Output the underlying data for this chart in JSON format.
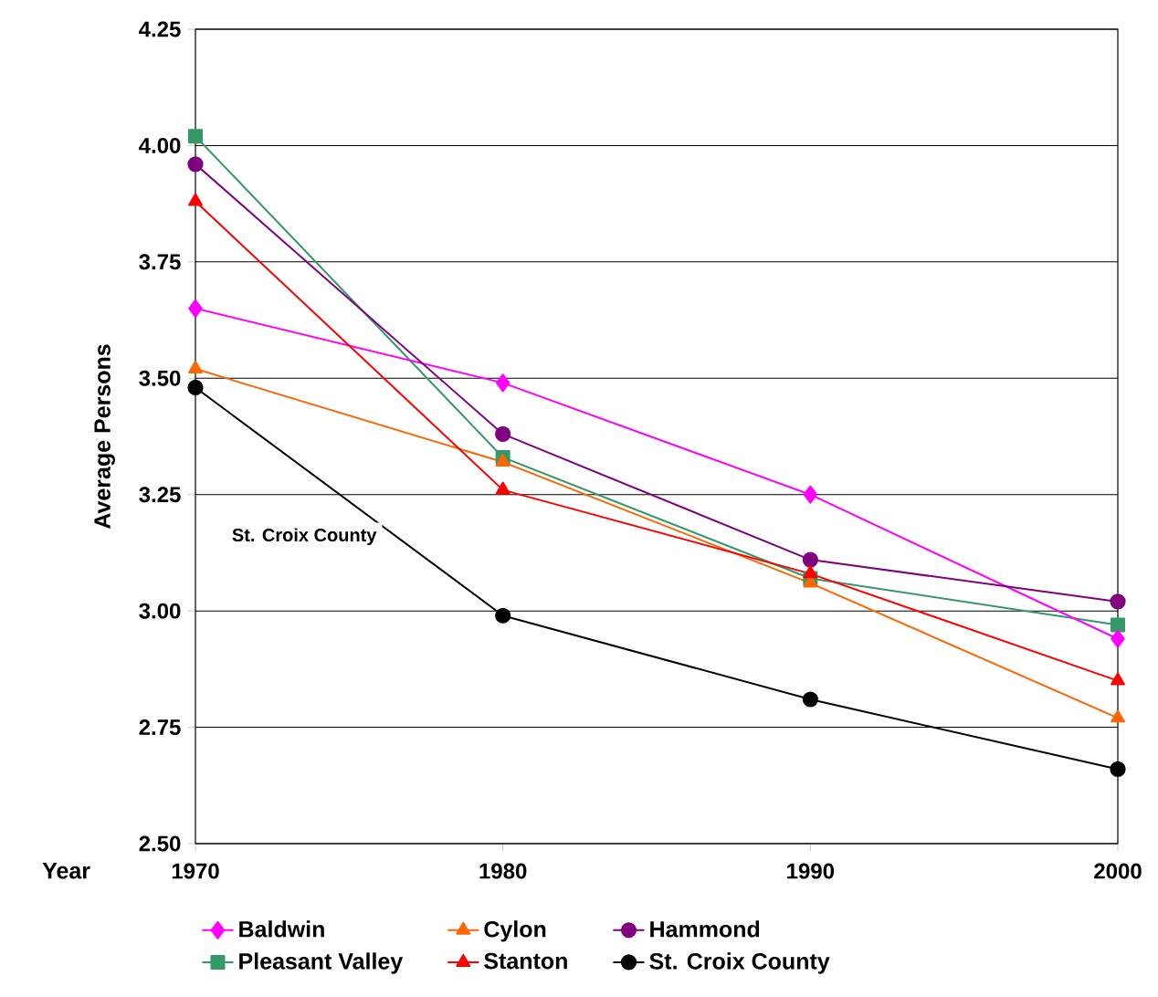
{
  "chart_data": {
    "type": "line",
    "xlabel": "Year",
    "ylabel": "Average Persons",
    "x": [
      1970,
      1980,
      1990,
      2000
    ],
    "xlim": [
      1970,
      2000
    ],
    "xticks": [
      1970,
      1980,
      1990,
      2000
    ],
    "ylim": [
      2.5,
      4.25
    ],
    "yticks": [
      {
        "value": 2.5,
        "label": "2.50"
      },
      {
        "value": 2.75,
        "label": "2.75"
      },
      {
        "value": 3.0,
        "label": "3.00"
      },
      {
        "value": 3.25,
        "label": "3.25"
      },
      {
        "value": 3.5,
        "label": "3.50"
      },
      {
        "value": 3.75,
        "label": "3.75"
      },
      {
        "value": 4.0,
        "label": "4.00"
      },
      {
        "value": 4.25,
        "label": "4.25"
      }
    ],
    "grid": "y",
    "legend": "bottom",
    "series": [
      {
        "name": "Baldwin",
        "color": "#ff00ff",
        "marker": "diamond",
        "values": [
          3.65,
          3.49,
          3.25,
          2.94
        ]
      },
      {
        "name": "Cylon",
        "color": "#ff6600",
        "marker": "triangle",
        "values": [
          3.52,
          3.32,
          3.06,
          2.77
        ]
      },
      {
        "name": "Hammond",
        "color": "#800080",
        "marker": "circle",
        "values": [
          3.96,
          3.38,
          3.11,
          3.02
        ]
      },
      {
        "name": "Pleasant Valley",
        "color": "#339966",
        "marker": "square",
        "values": [
          4.02,
          3.33,
          3.07,
          2.97
        ]
      },
      {
        "name": "Stanton",
        "color": "#ff0000",
        "marker": "triangle",
        "values": [
          3.88,
          3.26,
          3.08,
          2.85
        ]
      },
      {
        "name": "St. Croix County",
        "color": "#000000",
        "marker": "circle",
        "values": [
          3.48,
          2.99,
          2.81,
          2.66
        ]
      }
    ],
    "annotations": [
      "St. Croix County"
    ]
  }
}
